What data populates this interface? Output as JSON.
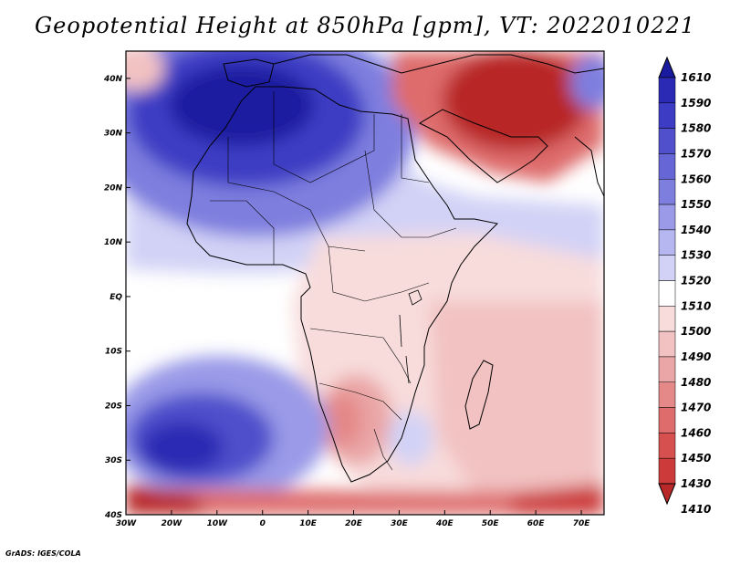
{
  "title": "Geopotential Height at 850hPa [gpm], VT: 2022010221",
  "credit": "GrADS: IGES/COLA",
  "map": {
    "region": "Africa",
    "lon_range": [
      -30,
      75
    ],
    "lat_range": [
      -40,
      45
    ],
    "lat_ticks": [
      {
        "value": 40,
        "label": "40N"
      },
      {
        "value": 30,
        "label": "30N"
      },
      {
        "value": 20,
        "label": "20N"
      },
      {
        "value": 10,
        "label": "10N"
      },
      {
        "value": 0,
        "label": "EQ"
      },
      {
        "value": -10,
        "label": "10S"
      },
      {
        "value": -20,
        "label": "20S"
      },
      {
        "value": -30,
        "label": "30S"
      },
      {
        "value": -40,
        "label": "40S"
      }
    ],
    "lon_ticks": [
      {
        "value": -30,
        "label": "30W"
      },
      {
        "value": -20,
        "label": "20W"
      },
      {
        "value": -10,
        "label": "10W"
      },
      {
        "value": 0,
        "label": "0"
      },
      {
        "value": 10,
        "label": "10E"
      },
      {
        "value": 20,
        "label": "20E"
      },
      {
        "value": 30,
        "label": "30E"
      },
      {
        "value": 40,
        "label": "40E"
      },
      {
        "value": 50,
        "label": "50E"
      },
      {
        "value": 60,
        "label": "60E"
      },
      {
        "value": 70,
        "label": "70E"
      }
    ]
  },
  "colorbar": {
    "levels": [
      {
        "label": "1610",
        "color": "#1a1aa0"
      },
      {
        "label": "1590",
        "color": "#2a2ab4"
      },
      {
        "label": "1580",
        "color": "#3c3cc4"
      },
      {
        "label": "1570",
        "color": "#5050cc"
      },
      {
        "label": "1560",
        "color": "#6666d6"
      },
      {
        "label": "1550",
        "color": "#7e7edf"
      },
      {
        "label": "1540",
        "color": "#9a9ae8"
      },
      {
        "label": "1530",
        "color": "#b6b6f0"
      },
      {
        "label": "1520",
        "color": "#d2d2f6"
      },
      {
        "label": "1510",
        "color": "#ffffff"
      },
      {
        "label": "1500",
        "color": "#f8dcdc"
      },
      {
        "label": "1490",
        "color": "#f2c2c2"
      },
      {
        "label": "1480",
        "color": "#eaa6a6"
      },
      {
        "label": "1470",
        "color": "#e48888"
      },
      {
        "label": "1460",
        "color": "#de6c6c"
      },
      {
        "label": "1450",
        "color": "#d65050"
      },
      {
        "label": "1430",
        "color": "#cc3a3a"
      },
      {
        "label": "1410",
        "color": "#b82828"
      }
    ]
  }
}
